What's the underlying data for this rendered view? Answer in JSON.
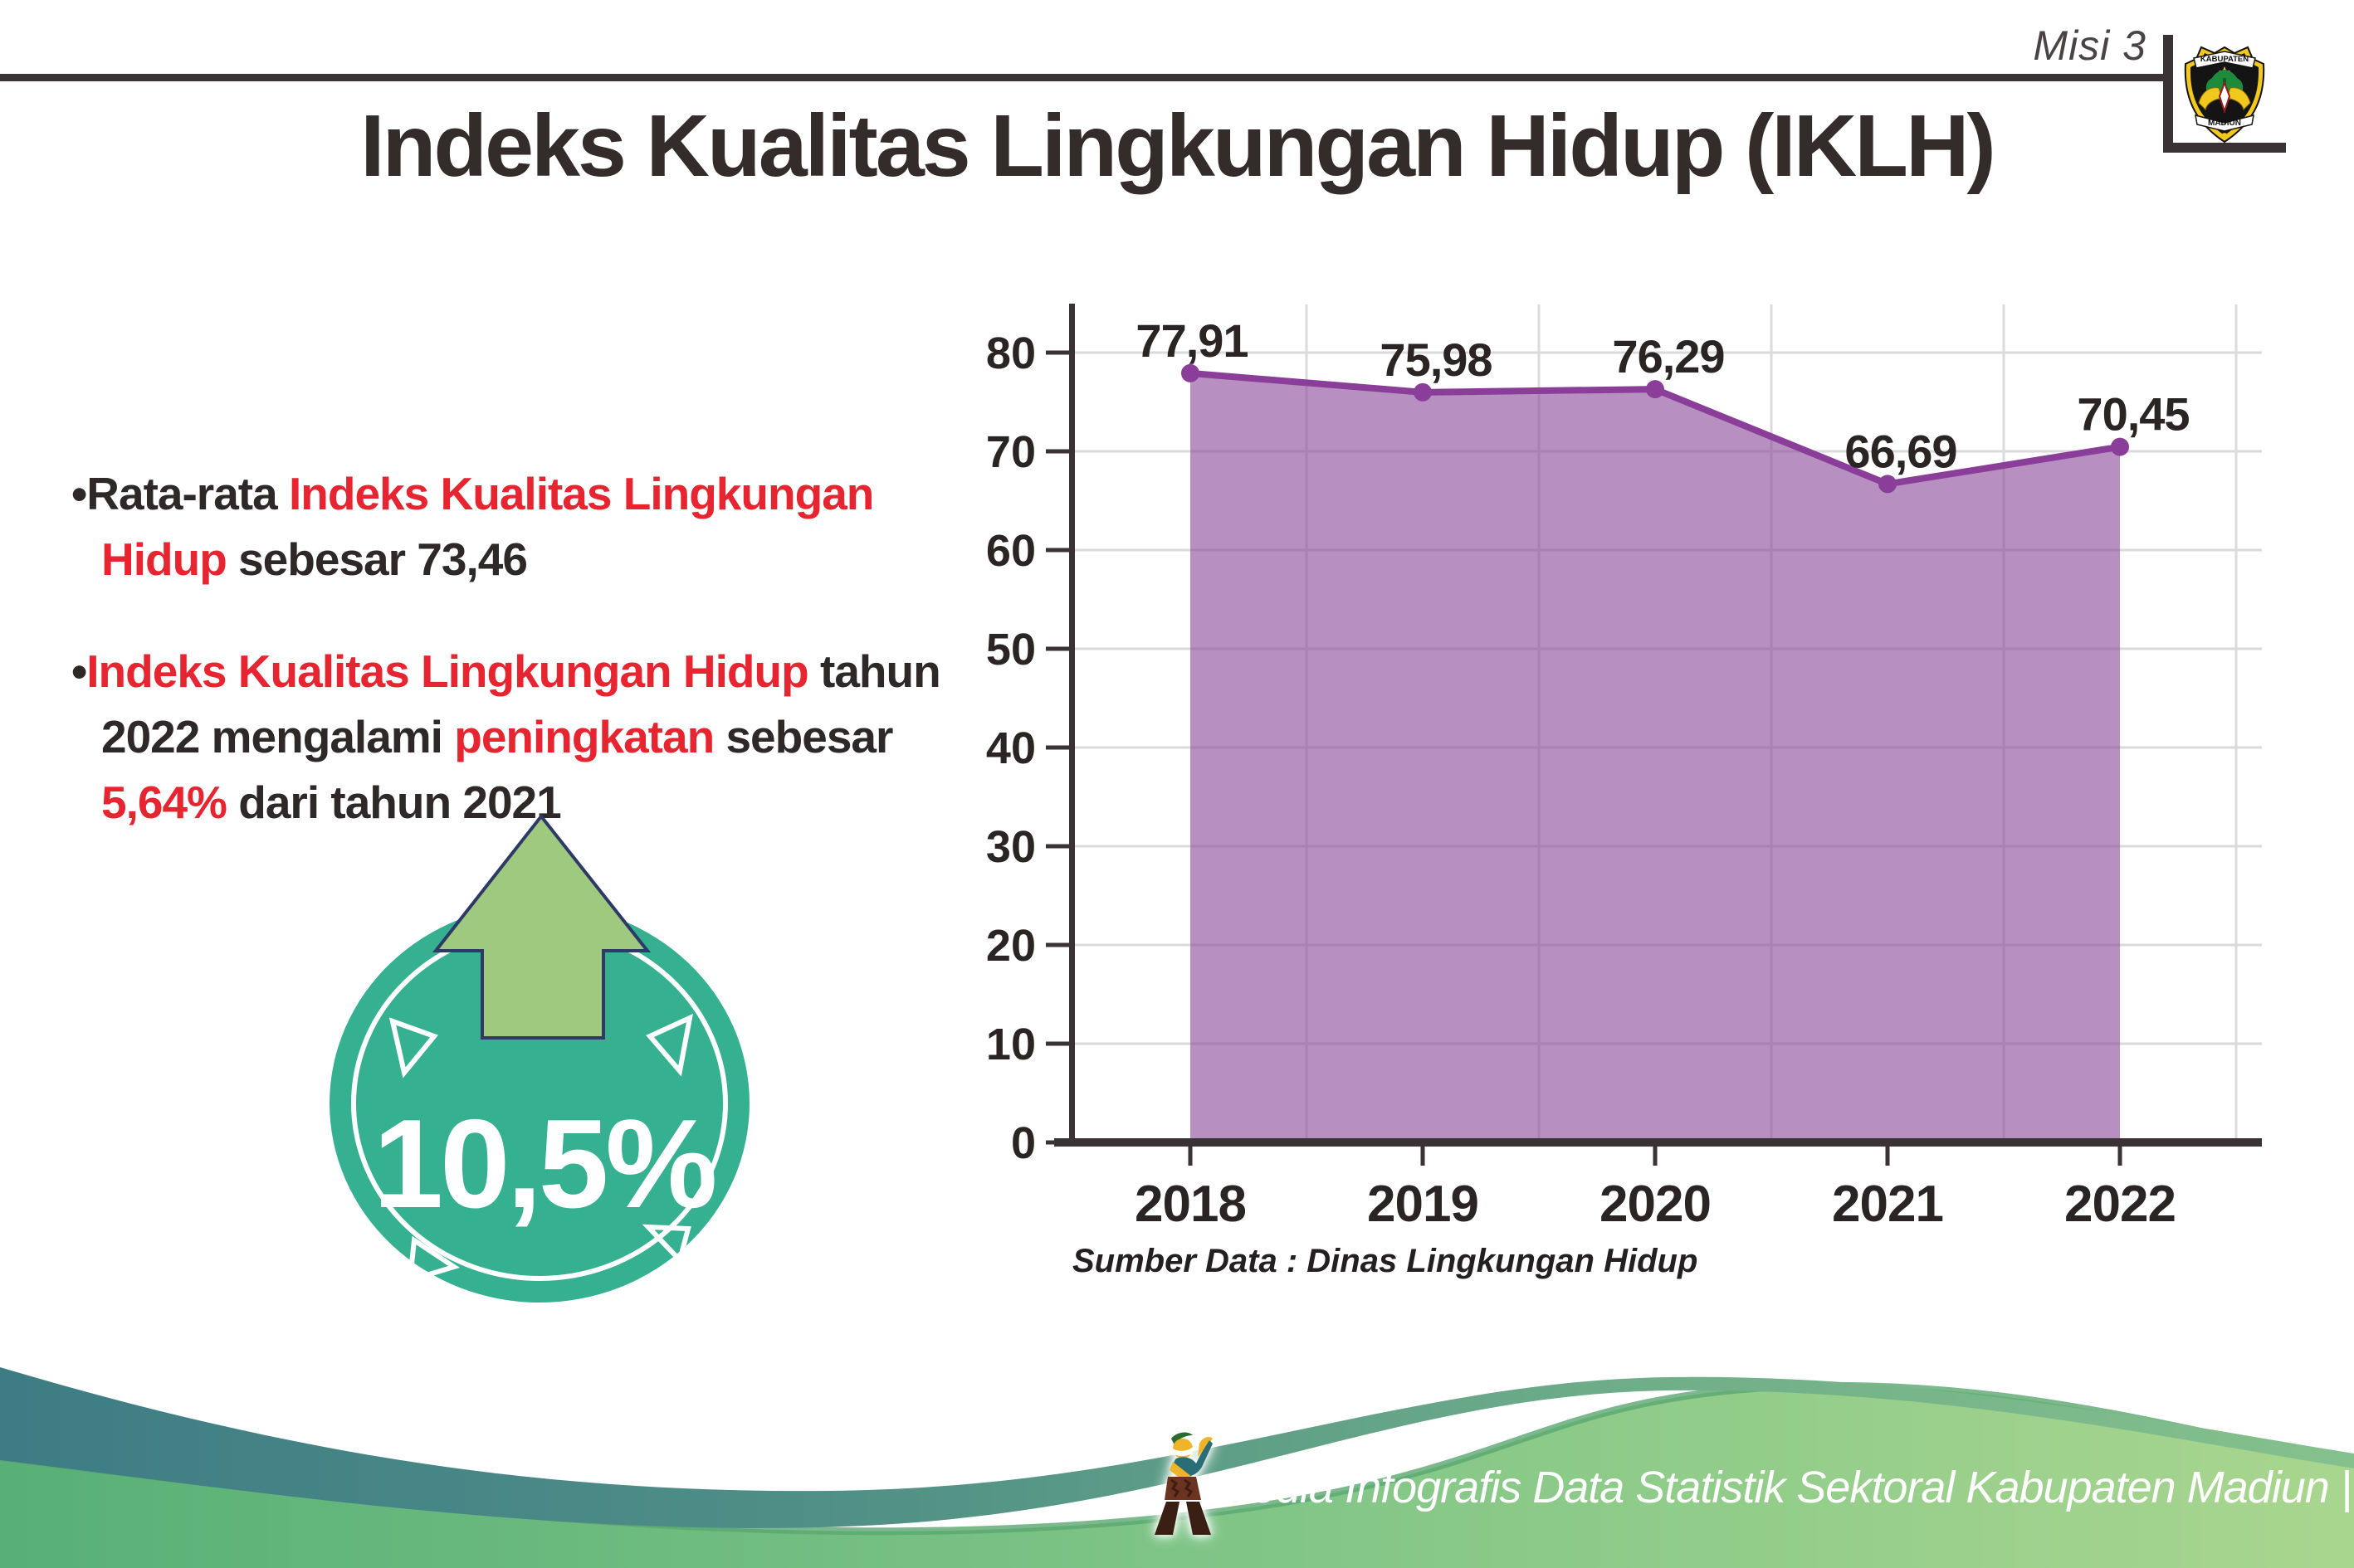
{
  "header": {
    "misi_label": "Misi 3",
    "title": "Indeks Kualitas Lingkungan Hidup (IKLH)"
  },
  "logo": {
    "top_text": "KABUPATEN",
    "bottom_text": "MADIUN"
  },
  "bullets": [
    {
      "marker": "•",
      "segments": [
        {
          "text": "Rata-rata ",
          "color": "dark"
        },
        {
          "text": "Indeks Kualitas Lingkungan Hidup",
          "color": "red"
        },
        {
          "text": " sebesar 73,46",
          "color": "dark"
        }
      ]
    },
    {
      "marker": "•",
      "segments": [
        {
          "text": "Indeks Kualitas Lingkungan Hidup",
          "color": "red"
        },
        {
          "text": " tahun 2022 mengalami ",
          "color": "dark"
        },
        {
          "text": "peningkatan",
          "color": "red"
        },
        {
          "text": " sebesar ",
          "color": "dark"
        },
        {
          "text": "5,64%",
          "color": "red"
        },
        {
          "text": " dari tahun 2021",
          "color": "dark"
        }
      ]
    }
  ],
  "badge": {
    "value": "10,5%",
    "circle_color": "#35b191",
    "arrow_color": "#9fc97e",
    "arrow_outline": "#2d3a66"
  },
  "chart_data": {
    "type": "area",
    "categories": [
      "2018",
      "2019",
      "2020",
      "2021",
      "2022"
    ],
    "series": [
      {
        "name": "IKLH",
        "values": [
          77.91,
          75.98,
          76.29,
          66.69,
          70.45
        ]
      }
    ],
    "point_labels": [
      "77,91",
      "75,98",
      "76,29",
      "66,69",
      "70,45"
    ],
    "y_ticks": [
      0,
      10,
      20,
      30,
      40,
      50,
      60,
      70,
      80
    ],
    "ylim": [
      0,
      84.5
    ],
    "grid": true,
    "legend_position": "none",
    "colors": {
      "line": "#8b3e99",
      "fill": "#8a4b9b",
      "marker": "#8b3e99",
      "gridline": "#dadada",
      "axis": "#3a3234",
      "label": "#2b2425"
    },
    "source_note": "Sumber Data : Dinas Lingkungan Hidup"
  },
  "footer": {
    "text": "Media Infografis Data Statistik Sektoral Kabupaten Madiun |"
  }
}
